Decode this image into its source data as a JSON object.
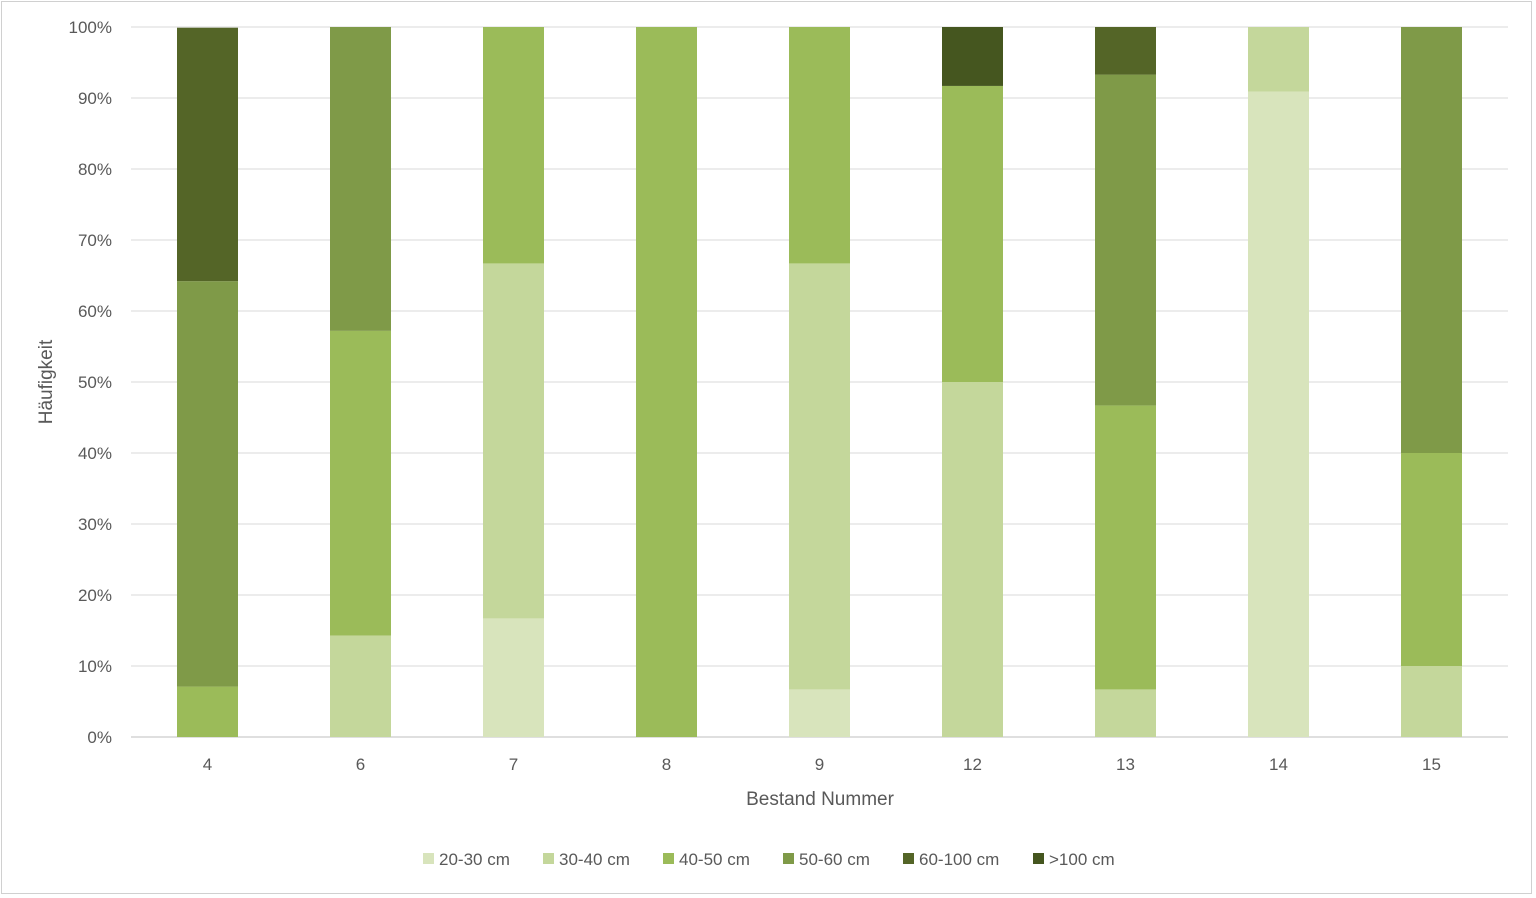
{
  "chart_data": {
    "type": "bar",
    "stacked": true,
    "percent": true,
    "xlabel": "Bestand Nummer",
    "ylabel": "Häufigkeit",
    "categories": [
      "4",
      "6",
      "7",
      "8",
      "9",
      "12",
      "13",
      "14",
      "15"
    ],
    "yticks": [
      "0%",
      "10%",
      "20%",
      "30%",
      "40%",
      "50%",
      "60%",
      "70%",
      "80%",
      "90%",
      "100%"
    ],
    "ylim": [
      0,
      100
    ],
    "grid": true,
    "legend_position": "bottom",
    "series": [
      {
        "name": "20-30 cm",
        "color": "#d8e4bc",
        "values": [
          0,
          0,
          16.7,
          0,
          6.7,
          0,
          0,
          90.9,
          0
        ]
      },
      {
        "name": "30-40 cm",
        "color": "#c4d79b",
        "values": [
          0,
          14.3,
          50.0,
          0,
          60.0,
          50.0,
          6.7,
          9.1,
          10.0
        ]
      },
      {
        "name": "40-50 cm",
        "color": "#9bbb59",
        "values": [
          7.1,
          42.9,
          33.3,
          100,
          33.3,
          41.7,
          40.0,
          0,
          30.0
        ]
      },
      {
        "name": "50-60 cm",
        "color": "#7f9a48",
        "values": [
          57.1,
          42.8,
          0,
          0,
          0,
          0,
          46.6,
          0,
          60.0
        ]
      },
      {
        "name": "60-100 cm",
        "color": "#546527",
        "values": [
          35.7,
          0,
          0,
          0,
          0,
          0,
          6.7,
          0,
          0
        ]
      },
      {
        "name": ">100 cm",
        "color": "#45561f",
        "values": [
          0,
          0,
          0,
          0,
          0,
          8.3,
          0,
          0,
          0
        ]
      }
    ]
  }
}
